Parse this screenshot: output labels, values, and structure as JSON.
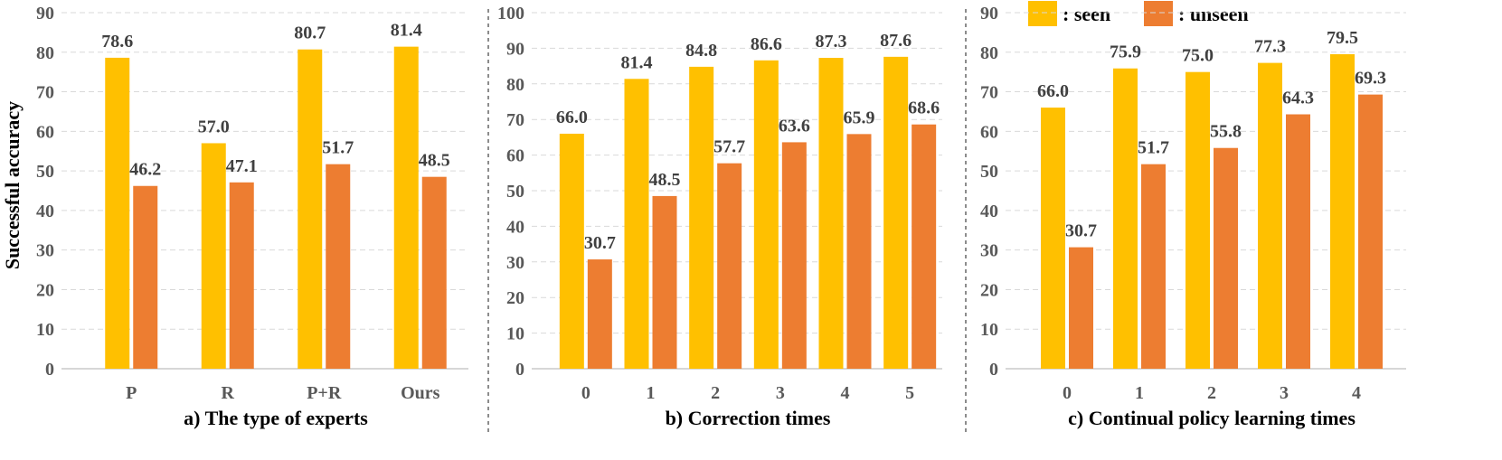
{
  "ylabel": "Successful accuracy",
  "legend": {
    "position": "top-right",
    "items": [
      {
        "label": ": seen",
        "color": "#FFC000"
      },
      {
        "label": ": unseen",
        "color": "#ED7D31"
      }
    ]
  },
  "colors": {
    "seen": "#FFC000",
    "unseen": "#ED7D31"
  },
  "chart_data": [
    {
      "type": "bar",
      "title": "a) The type of experts",
      "categories": [
        "P",
        "R",
        "P+R",
        "Ours"
      ],
      "series": [
        {
          "name": "seen",
          "values": [
            78.6,
            57.0,
            80.7,
            81.4
          ]
        },
        {
          "name": "unseen",
          "values": [
            46.2,
            47.1,
            51.7,
            48.5
          ]
        }
      ],
      "ylabel": "Successful accuracy",
      "ylim": [
        0,
        90
      ],
      "yticks": [
        0,
        10,
        20,
        30,
        40,
        50,
        60,
        70,
        80,
        90
      ],
      "grid": true
    },
    {
      "type": "bar",
      "title": "b) Correction times",
      "categories": [
        "0",
        "1",
        "2",
        "3",
        "4",
        "5"
      ],
      "series": [
        {
          "name": "seen",
          "values": [
            66.0,
            81.4,
            84.8,
            86.6,
            87.3,
            87.6
          ]
        },
        {
          "name": "unseen",
          "values": [
            30.7,
            48.5,
            57.7,
            63.6,
            65.9,
            68.6
          ]
        }
      ],
      "ylim": [
        0,
        100
      ],
      "yticks": [
        0,
        10,
        20,
        30,
        40,
        50,
        60,
        70,
        80,
        90,
        100
      ],
      "grid": true
    },
    {
      "type": "bar",
      "title": "c) Continual policy learning times",
      "categories": [
        "0",
        "1",
        "2",
        "3",
        "4"
      ],
      "series": [
        {
          "name": "seen",
          "values": [
            66.0,
            75.9,
            75.0,
            77.3,
            79.5
          ]
        },
        {
          "name": "unseen",
          "values": [
            30.7,
            51.7,
            55.8,
            64.3,
            69.3
          ]
        }
      ],
      "ylim": [
        0,
        90
      ],
      "yticks": [
        0,
        10,
        20,
        30,
        40,
        50,
        60,
        70,
        80,
        90
      ],
      "grid": true
    }
  ]
}
